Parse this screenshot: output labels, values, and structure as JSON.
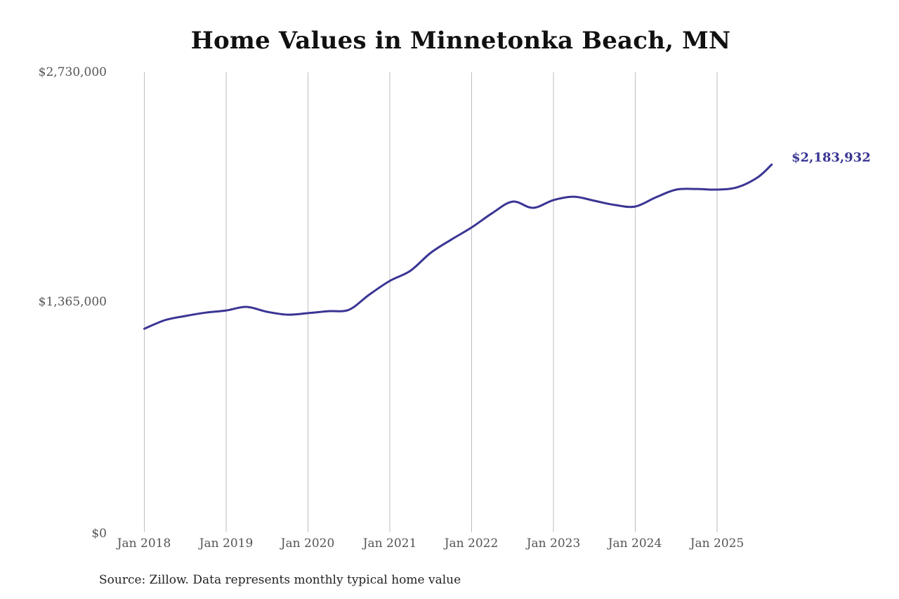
{
  "chart_data": {
    "type": "line",
    "title": "Home Values in Minnetonka Beach, MN",
    "xlabel": "",
    "ylabel": "",
    "ylim": [
      0,
      2730000
    ],
    "y_ticks": [
      "$0",
      "$1,365,000",
      "$2,730,000"
    ],
    "y_tick_values": [
      0,
      1365000,
      2730000
    ],
    "x_ticks": [
      "Jan 2018",
      "Jan 2019",
      "Jan 2020",
      "Jan 2021",
      "Jan 2022",
      "Jan 2023",
      "Jan 2024",
      "Jan 2025"
    ],
    "grid": "vertical",
    "legend": "none",
    "line_color": "#3a3594",
    "series": [
      {
        "name": "Typical home value",
        "x": [
          "2018-01",
          "2018-04",
          "2018-07",
          "2018-10",
          "2019-01",
          "2019-04",
          "2019-07",
          "2019-10",
          "2020-01",
          "2020-04",
          "2020-07",
          "2020-10",
          "2021-01",
          "2021-04",
          "2021-07",
          "2021-10",
          "2022-01",
          "2022-04",
          "2022-07",
          "2022-10",
          "2023-01",
          "2023-04",
          "2023-07",
          "2023-10",
          "2024-01",
          "2024-04",
          "2024-07",
          "2024-10",
          "2025-01",
          "2025-04",
          "2025-07",
          "2025-09"
        ],
        "values": [
          1213000,
          1263000,
          1288000,
          1308000,
          1321000,
          1342000,
          1313000,
          1296000,
          1305000,
          1317000,
          1325000,
          1415000,
          1496000,
          1555000,
          1662000,
          1740000,
          1812000,
          1896000,
          1965000,
          1928000,
          1974000,
          1994000,
          1970000,
          1945000,
          1936000,
          1990000,
          2036000,
          2040000,
          2036000,
          2050000,
          2110000,
          2183932
        ]
      }
    ],
    "annotations": [
      {
        "label": "$2,183,932",
        "x": "2025-09",
        "value": 2183932
      }
    ],
    "source": "Source: Zillow. Data represents monthly typical home value"
  },
  "title": "Home Values in Minnetonka Beach, MN",
  "y_axis": {
    "top": "$2,730,000",
    "mid": "$1,365,000",
    "bottom": "$0"
  },
  "x_axis": [
    "Jan 2018",
    "Jan 2019",
    "Jan 2020",
    "Jan 2021",
    "Jan 2022",
    "Jan 2023",
    "Jan 2024",
    "Jan 2025"
  ],
  "end_label": "$2,183,932",
  "source": "Source: Zillow. Data represents monthly typical home value"
}
